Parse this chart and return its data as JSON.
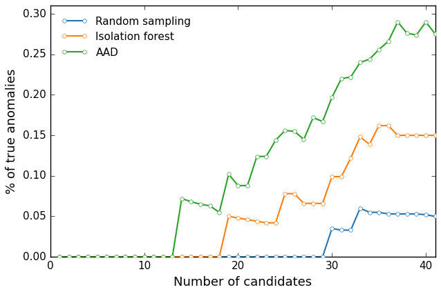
{
  "title": "",
  "xlabel": "Number of candidates",
  "ylabel": "% of true anomalies",
  "xlim": [
    0,
    41
  ],
  "ylim": [
    0.0,
    0.31
  ],
  "yticks": [
    0.0,
    0.05,
    0.1,
    0.15,
    0.2,
    0.25,
    0.3
  ],
  "xticks": [
    0,
    10,
    20,
    30,
    40
  ],
  "random_color": "#1f77b4",
  "isolation_color": "#ff7f0e",
  "aad_color": "#2ca02c",
  "random_x": [
    1,
    2,
    3,
    4,
    5,
    6,
    7,
    8,
    9,
    10,
    11,
    12,
    13,
    14,
    15,
    16,
    17,
    18,
    19,
    20,
    21,
    22,
    23,
    24,
    25,
    26,
    27,
    28,
    29,
    30,
    31,
    32,
    33,
    34,
    35,
    36,
    37,
    38,
    39,
    40,
    41
  ],
  "random_y": [
    0.0,
    0.0,
    0.0,
    0.0,
    0.0,
    0.0,
    0.0,
    0.0,
    0.0,
    0.0,
    0.0,
    0.0,
    0.0,
    0.0,
    0.0,
    0.0,
    0.0,
    0.0,
    0.0,
    0.0,
    0.0,
    0.0,
    0.0,
    0.0,
    0.0,
    0.0,
    0.0,
    0.0,
    0.0,
    0.035,
    0.033,
    0.033,
    0.06,
    0.055,
    0.055,
    0.053,
    0.053,
    0.053,
    0.053,
    0.052,
    0.05
  ],
  "isolation_x": [
    1,
    2,
    3,
    4,
    5,
    6,
    7,
    8,
    9,
    10,
    11,
    12,
    13,
    14,
    15,
    16,
    17,
    18,
    19,
    20,
    21,
    22,
    23,
    24,
    25,
    26,
    27,
    28,
    29,
    30,
    31,
    32,
    33,
    34,
    35,
    36,
    37,
    38,
    39,
    40,
    41
  ],
  "isolation_y": [
    0.0,
    0.0,
    0.0,
    0.0,
    0.0,
    0.0,
    0.0,
    0.0,
    0.0,
    0.0,
    0.0,
    0.0,
    0.0,
    0.0,
    0.0,
    0.0,
    0.0,
    0.0,
    0.05,
    0.048,
    0.046,
    0.044,
    0.042,
    0.042,
    0.078,
    0.078,
    0.066,
    0.066,
    0.066,
    0.099,
    0.099,
    0.122,
    0.148,
    0.139,
    0.162,
    0.162,
    0.15,
    0.15,
    0.15,
    0.15,
    0.15
  ],
  "aad_x": [
    1,
    2,
    3,
    4,
    5,
    6,
    7,
    8,
    9,
    10,
    11,
    12,
    13,
    14,
    15,
    16,
    17,
    18,
    19,
    20,
    21,
    22,
    23,
    24,
    25,
    26,
    27,
    28,
    29,
    30,
    31,
    32,
    33,
    34,
    35,
    36,
    37,
    38,
    39,
    40,
    41
  ],
  "aad_y": [
    0.0,
    0.0,
    0.0,
    0.0,
    0.0,
    0.0,
    0.0,
    0.0,
    0.0,
    0.0,
    0.0,
    0.0,
    0.0,
    0.072,
    0.068,
    0.065,
    0.063,
    0.055,
    0.102,
    0.088,
    0.088,
    0.124,
    0.124,
    0.144,
    0.156,
    0.155,
    0.145,
    0.172,
    0.167,
    0.197,
    0.22,
    0.222,
    0.24,
    0.244,
    0.256,
    0.266,
    0.29,
    0.276,
    0.274,
    0.29,
    0.275
  ]
}
